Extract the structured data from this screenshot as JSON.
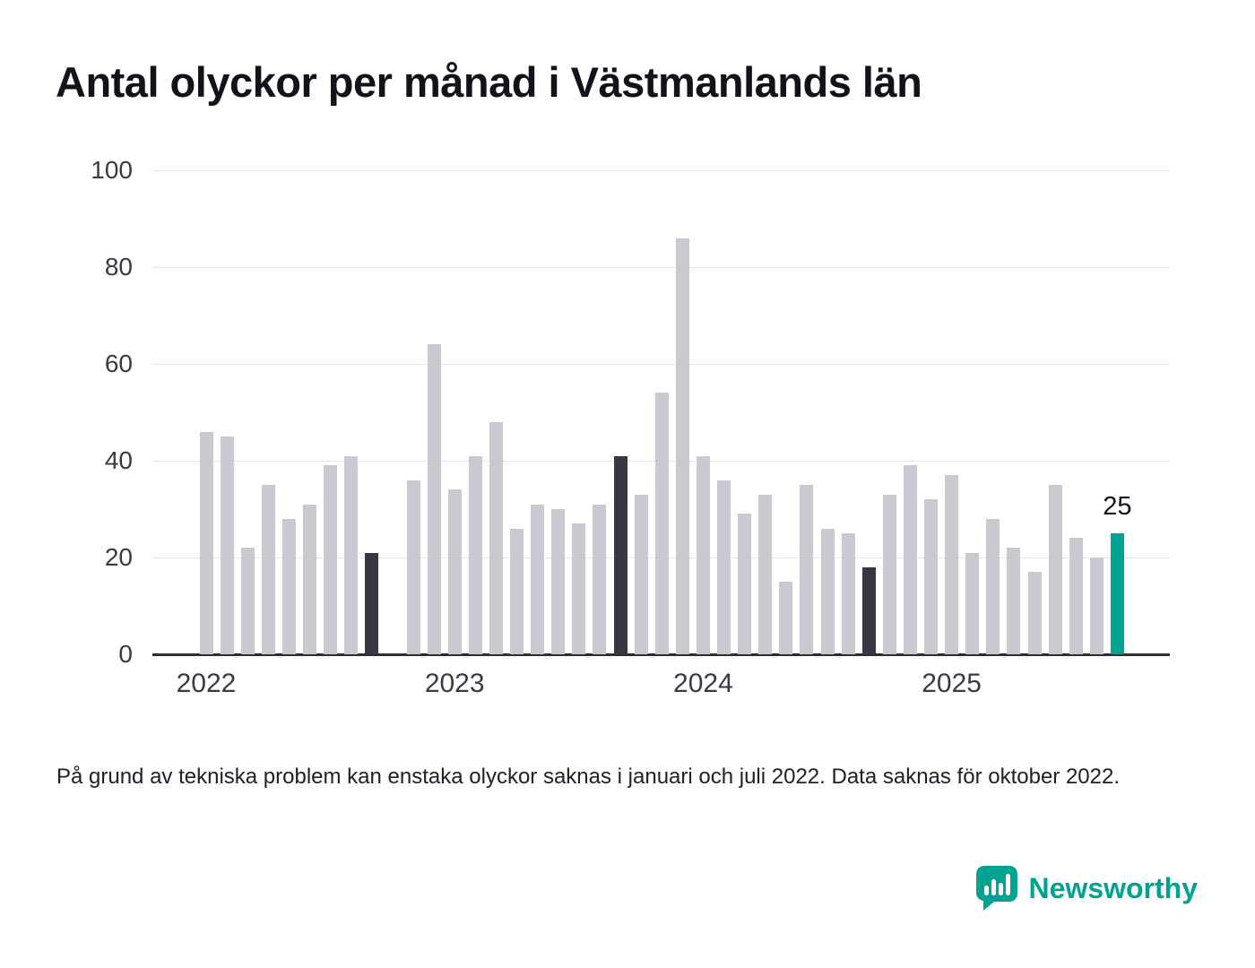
{
  "header": {
    "title": "Antal olyckor per månad i Västmanlands län"
  },
  "chart_data": {
    "type": "bar",
    "title": "Antal olyckor per månad i Västmanlands län",
    "xlabel": "",
    "ylabel": "",
    "ylim": [
      0,
      100
    ],
    "y_ticks": [
      0,
      20,
      40,
      60,
      80,
      100
    ],
    "x_tick_labels": [
      "2022",
      "2023",
      "2024",
      "2025"
    ],
    "grid": "horizontal",
    "legend": "none",
    "colors": {
      "gray": "#c9c9d2",
      "dark": "#383845",
      "teal": "#00a291"
    },
    "annotation": {
      "text": "25",
      "index": 44
    },
    "months": [
      {
        "month": "2022-01",
        "value": 46,
        "color": "gray"
      },
      {
        "month": "2022-02",
        "value": 45,
        "color": "gray"
      },
      {
        "month": "2022-03",
        "value": 22,
        "color": "gray"
      },
      {
        "month": "2022-04",
        "value": 35,
        "color": "gray"
      },
      {
        "month": "2022-05",
        "value": 28,
        "color": "gray"
      },
      {
        "month": "2022-06",
        "value": 31,
        "color": "gray"
      },
      {
        "month": "2022-07",
        "value": 39,
        "color": "gray"
      },
      {
        "month": "2022-08",
        "value": 41,
        "color": "gray"
      },
      {
        "month": "2022-09",
        "value": 21,
        "color": "dark"
      },
      {
        "month": "2022-10",
        "value": null,
        "color": "missing"
      },
      {
        "month": "2022-11",
        "value": 36,
        "color": "gray"
      },
      {
        "month": "2022-12",
        "value": 64,
        "color": "gray"
      },
      {
        "month": "2023-01",
        "value": 34,
        "color": "gray"
      },
      {
        "month": "2023-02",
        "value": 41,
        "color": "gray"
      },
      {
        "month": "2023-03",
        "value": 48,
        "color": "gray"
      },
      {
        "month": "2023-04",
        "value": 26,
        "color": "gray"
      },
      {
        "month": "2023-05",
        "value": 31,
        "color": "gray"
      },
      {
        "month": "2023-06",
        "value": 30,
        "color": "gray"
      },
      {
        "month": "2023-07",
        "value": 27,
        "color": "gray"
      },
      {
        "month": "2023-08",
        "value": 31,
        "color": "gray"
      },
      {
        "month": "2023-09",
        "value": 41,
        "color": "dark"
      },
      {
        "month": "2023-10",
        "value": 33,
        "color": "gray"
      },
      {
        "month": "2023-11",
        "value": 54,
        "color": "gray"
      },
      {
        "month": "2023-12",
        "value": 86,
        "color": "gray"
      },
      {
        "month": "2024-01",
        "value": 41,
        "color": "gray"
      },
      {
        "month": "2024-02",
        "value": 36,
        "color": "gray"
      },
      {
        "month": "2024-03",
        "value": 29,
        "color": "gray"
      },
      {
        "month": "2024-04",
        "value": 33,
        "color": "gray"
      },
      {
        "month": "2024-05",
        "value": 15,
        "color": "gray"
      },
      {
        "month": "2024-06",
        "value": 35,
        "color": "gray"
      },
      {
        "month": "2024-07",
        "value": 26,
        "color": "gray"
      },
      {
        "month": "2024-08",
        "value": 25,
        "color": "gray"
      },
      {
        "month": "2024-09",
        "value": 18,
        "color": "dark"
      },
      {
        "month": "2024-10",
        "value": 33,
        "color": "gray"
      },
      {
        "month": "2024-11",
        "value": 39,
        "color": "gray"
      },
      {
        "month": "2024-12",
        "value": 32,
        "color": "gray"
      },
      {
        "month": "2025-01",
        "value": 37,
        "color": "gray"
      },
      {
        "month": "2025-02",
        "value": 21,
        "color": "gray"
      },
      {
        "month": "2025-03",
        "value": 28,
        "color": "gray"
      },
      {
        "month": "2025-04",
        "value": 22,
        "color": "gray"
      },
      {
        "month": "2025-05",
        "value": 17,
        "color": "gray"
      },
      {
        "month": "2025-06",
        "value": 35,
        "color": "gray"
      },
      {
        "month": "2025-07",
        "value": 24,
        "color": "gray"
      },
      {
        "month": "2025-08",
        "value": 20,
        "color": "gray"
      },
      {
        "month": "2025-09",
        "value": 25,
        "color": "teal"
      }
    ]
  },
  "footnote": "På grund av tekniska problem kan enstaka olyckor saknas i januari och juli 2022. Data saknas för oktober 2022.",
  "branding": {
    "name": "Newsworthy",
    "color": "#00a291"
  }
}
